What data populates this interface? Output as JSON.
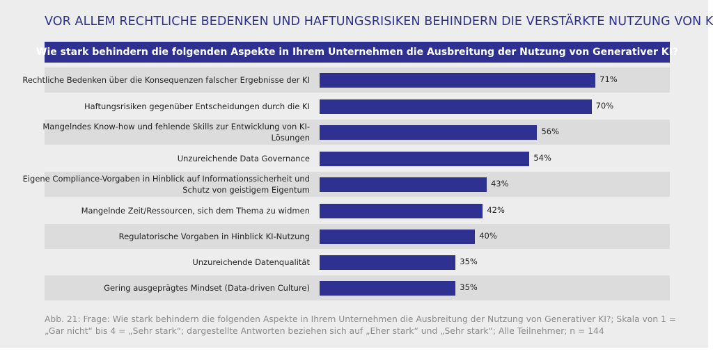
{
  "title": "VOR ALLEM RECHTLICHE BEDENKEN UND HAFTUNGSRISIKEN BEHINDERN DIE VERSTÄRKTE NUTZUNG VON KI",
  "question": "Wie stark behindern die folgenden Aspekte in Ihrem Unternehmen die Ausbreitung der Nutzung von Generativer KI?",
  "caption": "Abb. 21: Frage: Wie stark behindern die folgenden Aspekte in Ihrem Unternehmen die Ausbreitung der Nutzung von Generativer KI?; Skala von 1 = „Gar nicht“ bis 4 = „Sehr stark“; dargestellte Antworten beziehen sich auf „Eher stark“ und „Sehr stark“; Alle Teilnehmer; n = 144",
  "colors": {
    "accent": "#2e3192",
    "row_shade": "#dcdcdc",
    "panel": "#ededed"
  },
  "chart_data": {
    "type": "bar",
    "orientation": "horizontal",
    "categories": [
      "Rechtliche Bedenken über die Konsequenzen falscher Ergebnisse der KI",
      "Haftungsrisiken gegenüber Entscheidungen durch die KI",
      "Mangelndes Know-how und fehlende Skills zur Entwicklung von KI-Lösungen",
      "Unzureichende Data Governance",
      "Eigene Compliance-Vorgaben in Hinblick auf Informationssicherheit und Schutz von geistigem Eigentum",
      "Mangelnde Zeit/Ressourcen, sich dem Thema zu widmen",
      "Regulatorische Vorgaben in Hinblick KI-Nutzung",
      "Unzureichende Datenqualität",
      "Gering ausgeprägtes Mindset (Data-driven Culture)"
    ],
    "values": [
      71,
      70,
      56,
      54,
      43,
      42,
      40,
      35,
      35
    ],
    "labels": [
      "71%",
      "70%",
      "56%",
      "54%",
      "43%",
      "42%",
      "40%",
      "35%",
      "35%"
    ],
    "unit": "%"
  }
}
